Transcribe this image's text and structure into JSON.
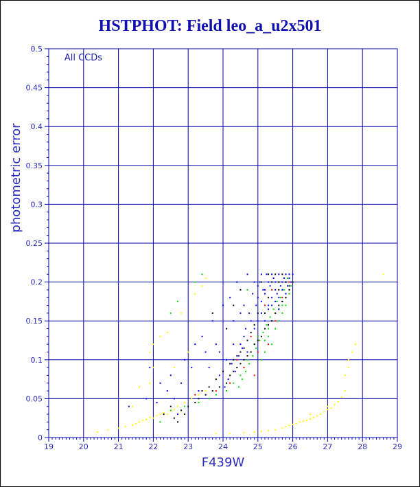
{
  "chart_data": {
    "type": "scatter",
    "title": "HSTPHOT: Field leo_a_u2x501",
    "xlabel": "F439W",
    "ylabel": "photometric error",
    "annotation": "All CCDs",
    "xlim": [
      19,
      29
    ],
    "ylim": [
      0,
      0.5
    ],
    "x_ticks": [
      "19",
      "20",
      "21",
      "22",
      "23",
      "24",
      "25",
      "26",
      "27",
      "28",
      "29"
    ],
    "y_ticks": [
      "0",
      "0.05",
      "0.1",
      "0.15",
      "0.2",
      "0.25",
      "0.3",
      "0.35",
      "0.4",
      "0.45",
      "0.5"
    ],
    "grid": true,
    "colors": {
      "title": "#1010b0",
      "axis": "#0000aa",
      "grid": "#0000aa",
      "text": "#2b2bbf"
    },
    "series": [
      {
        "color": "#ffff00",
        "points": [
          [
            20.4,
            0.007
          ],
          [
            20.7,
            0.01
          ],
          [
            21.0,
            0.012
          ],
          [
            21.2,
            0.014
          ],
          [
            21.4,
            0.016
          ],
          [
            21.5,
            0.018
          ],
          [
            21.6,
            0.02
          ],
          [
            21.7,
            0.022
          ],
          [
            21.8,
            0.023
          ],
          [
            21.9,
            0.026
          ],
          [
            22.0,
            0.025
          ],
          [
            22.1,
            0.028
          ],
          [
            22.2,
            0.03
          ],
          [
            22.3,
            0.032
          ],
          [
            22.4,
            0.03
          ],
          [
            22.5,
            0.034
          ],
          [
            22.6,
            0.036
          ],
          [
            22.7,
            0.04
          ],
          [
            22.9,
            0.045
          ],
          [
            23.1,
            0.05
          ],
          [
            23.3,
            0.055
          ],
          [
            23.5,
            0.06
          ],
          [
            21.4,
            0.04
          ],
          [
            21.6,
            0.065
          ],
          [
            21.9,
            0.07
          ],
          [
            22.0,
            0.12
          ],
          [
            22.2,
            0.13
          ],
          [
            22.4,
            0.135
          ],
          [
            22.6,
            0.09
          ],
          [
            22.8,
            0.16
          ],
          [
            23.0,
            0.11
          ],
          [
            23.2,
            0.185
          ],
          [
            23.4,
            0.195
          ],
          [
            23.5,
            0.205
          ],
          [
            22.0,
            0.09
          ],
          [
            21.9,
            0.11
          ],
          [
            23.8,
            0.005
          ],
          [
            24.2,
            0.005
          ],
          [
            24.6,
            0.006
          ],
          [
            24.9,
            0.007
          ],
          [
            25.1,
            0.008
          ],
          [
            25.3,
            0.009
          ],
          [
            25.5,
            0.01
          ],
          [
            25.7,
            0.012
          ],
          [
            25.8,
            0.014
          ],
          [
            25.9,
            0.016
          ],
          [
            26.0,
            0.017
          ],
          [
            26.1,
            0.018
          ],
          [
            26.2,
            0.02
          ],
          [
            26.3,
            0.021
          ],
          [
            26.4,
            0.022
          ],
          [
            26.5,
            0.024
          ],
          [
            26.6,
            0.026
          ],
          [
            26.7,
            0.028
          ],
          [
            26.8,
            0.03
          ],
          [
            26.9,
            0.033
          ],
          [
            27.0,
            0.036
          ],
          [
            27.1,
            0.038
          ],
          [
            27.2,
            0.042
          ],
          [
            27.3,
            0.046
          ],
          [
            27.4,
            0.052
          ],
          [
            27.5,
            0.06
          ],
          [
            27.5,
            0.08
          ],
          [
            27.6,
            0.09
          ],
          [
            27.6,
            0.1
          ],
          [
            27.7,
            0.11
          ],
          [
            27.8,
            0.12
          ],
          [
            26.5,
            0.03
          ],
          [
            27.0,
            0.04
          ],
          [
            28.6,
            0.21
          ]
        ]
      },
      {
        "color": "#00dd00",
        "points": [
          [
            22.2,
            0.02
          ],
          [
            22.5,
            0.035
          ],
          [
            22.9,
            0.04
          ],
          [
            23.3,
            0.045
          ],
          [
            23.6,
            0.05
          ],
          [
            23.8,
            0.055
          ],
          [
            24.1,
            0.06
          ],
          [
            24.3,
            0.07
          ],
          [
            24.5,
            0.08
          ],
          [
            24.6,
            0.09
          ],
          [
            24.7,
            0.1
          ],
          [
            24.8,
            0.11
          ],
          [
            24.9,
            0.12
          ],
          [
            25.0,
            0.13
          ],
          [
            25.1,
            0.1
          ],
          [
            25.2,
            0.11
          ],
          [
            25.2,
            0.125
          ],
          [
            25.3,
            0.13
          ],
          [
            25.3,
            0.14
          ],
          [
            25.4,
            0.12
          ],
          [
            25.4,
            0.15
          ],
          [
            25.5,
            0.14
          ],
          [
            25.5,
            0.16
          ],
          [
            25.6,
            0.15
          ],
          [
            25.6,
            0.165
          ],
          [
            25.7,
            0.17
          ],
          [
            25.7,
            0.16
          ],
          [
            25.8,
            0.18
          ],
          [
            25.8,
            0.17
          ],
          [
            25.9,
            0.19
          ],
          [
            25.9,
            0.185
          ],
          [
            26.0,
            0.2
          ],
          [
            25.95,
            0.195
          ],
          [
            25.85,
            0.205
          ],
          [
            25.75,
            0.19
          ],
          [
            25.65,
            0.18
          ],
          [
            25.55,
            0.175
          ],
          [
            25.45,
            0.165
          ],
          [
            25.35,
            0.155
          ],
          [
            25.25,
            0.145
          ],
          [
            25.15,
            0.135
          ],
          [
            25.05,
            0.125
          ],
          [
            24.95,
            0.115
          ],
          [
            24.85,
            0.105
          ],
          [
            24.75,
            0.095
          ],
          [
            24.65,
            0.085
          ],
          [
            24.55,
            0.075
          ],
          [
            24.45,
            0.065
          ],
          [
            22.5,
            0.16
          ],
          [
            22.7,
            0.175
          ],
          [
            23.2,
            0.2
          ],
          [
            23.4,
            0.21
          ],
          [
            24.4,
            0.2
          ],
          [
            24.7,
            0.19
          ]
        ]
      },
      {
        "color": "#ff0000",
        "points": [
          [
            23.2,
            0.055
          ],
          [
            23.8,
            0.06
          ],
          [
            24.2,
            0.07
          ],
          [
            24.6,
            0.09
          ],
          [
            24.9,
            0.08
          ],
          [
            25.0,
            0.11
          ],
          [
            25.3,
            0.12
          ],
          [
            25.5,
            0.15
          ],
          [
            25.7,
            0.18
          ],
          [
            25.9,
            0.2
          ],
          [
            24.4,
            0.1
          ],
          [
            25.2,
            0.17
          ],
          [
            25.6,
            0.2
          ],
          [
            25.8,
            0.21
          ],
          [
            24.8,
            0.13
          ],
          [
            25.4,
            0.19
          ]
        ]
      },
      {
        "color": "#0000ff",
        "points": [
          [
            21.3,
            0.04
          ],
          [
            21.8,
            0.05
          ],
          [
            22.1,
            0.045
          ],
          [
            22.4,
            0.06
          ],
          [
            22.6,
            0.05
          ],
          [
            22.8,
            0.07
          ],
          [
            22.9,
            0.1
          ],
          [
            23.1,
            0.09
          ],
          [
            23.2,
            0.12
          ],
          [
            23.4,
            0.13
          ],
          [
            23.5,
            0.11
          ],
          [
            23.6,
            0.09
          ],
          [
            23.7,
            0.15
          ],
          [
            23.8,
            0.12
          ],
          [
            23.9,
            0.08
          ],
          [
            24.0,
            0.17
          ],
          [
            24.1,
            0.14
          ],
          [
            24.2,
            0.18
          ],
          [
            24.3,
            0.15
          ],
          [
            24.4,
            0.2
          ],
          [
            24.5,
            0.12
          ],
          [
            24.6,
            0.17
          ],
          [
            24.7,
            0.21
          ],
          [
            24.8,
            0.15
          ],
          [
            24.9,
            0.2
          ],
          [
            25.0,
            0.18
          ],
          [
            25.1,
            0.21
          ],
          [
            25.2,
            0.19
          ],
          [
            25.3,
            0.2
          ],
          [
            25.4,
            0.21
          ],
          [
            25.5,
            0.2
          ],
          [
            25.6,
            0.21
          ],
          [
            25.7,
            0.2
          ],
          [
            25.8,
            0.21
          ],
          [
            25.9,
            0.205
          ],
          [
            26.0,
            0.21
          ],
          [
            25.1,
            0.16
          ],
          [
            25.2,
            0.15
          ],
          [
            25.3,
            0.17
          ],
          [
            25.4,
            0.18
          ],
          [
            25.5,
            0.19
          ],
          [
            25.6,
            0.18
          ],
          [
            25.7,
            0.19
          ],
          [
            25.8,
            0.2
          ],
          [
            24.9,
            0.14
          ],
          [
            25.0,
            0.15
          ],
          [
            24.7,
            0.11
          ],
          [
            24.6,
            0.13
          ],
          [
            24.5,
            0.16
          ],
          [
            24.3,
            0.12
          ],
          [
            24.1,
            0.1
          ],
          [
            23.9,
            0.11
          ],
          [
            23.3,
            0.06
          ],
          [
            22.7,
            0.03
          ],
          [
            22.5,
            0.08
          ],
          [
            22.2,
            0.07
          ],
          [
            21.9,
            0.09
          ],
          [
            25.05,
            0.2
          ],
          [
            25.15,
            0.19
          ],
          [
            25.25,
            0.21
          ],
          [
            25.35,
            0.195
          ],
          [
            25.45,
            0.205
          ],
          [
            25.55,
            0.185
          ],
          [
            25.65,
            0.195
          ],
          [
            25.75,
            0.205
          ],
          [
            25.85,
            0.195
          ],
          [
            25.95,
            0.2
          ],
          [
            25.1,
            0.175
          ],
          [
            25.2,
            0.185
          ],
          [
            25.3,
            0.165
          ],
          [
            25.4,
            0.17
          ],
          [
            25.5,
            0.175
          ],
          [
            25.6,
            0.165
          ],
          [
            25.7,
            0.175
          ],
          [
            25.8,
            0.185
          ],
          [
            25.9,
            0.21
          ],
          [
            25.0,
            0.195
          ],
          [
            24.95,
            0.17
          ],
          [
            24.85,
            0.185
          ],
          [
            24.75,
            0.16
          ],
          [
            24.65,
            0.14
          ],
          [
            24.55,
            0.115
          ],
          [
            24.45,
            0.105
          ],
          [
            24.35,
            0.085
          ],
          [
            24.25,
            0.095
          ],
          [
            24.15,
            0.075
          ],
          [
            24.05,
            0.065
          ]
        ]
      },
      {
        "color": "#000000",
        "points": [
          [
            22.3,
            0.03
          ],
          [
            22.6,
            0.025
          ],
          [
            22.8,
            0.035
          ],
          [
            23.0,
            0.04
          ],
          [
            23.3,
            0.05
          ],
          [
            23.5,
            0.055
          ],
          [
            23.7,
            0.06
          ],
          [
            23.9,
            0.065
          ],
          [
            24.1,
            0.07
          ],
          [
            24.2,
            0.08
          ],
          [
            24.3,
            0.085
          ],
          [
            24.4,
            0.09
          ],
          [
            24.5,
            0.095
          ],
          [
            24.6,
            0.1
          ],
          [
            24.7,
            0.105
          ],
          [
            24.8,
            0.11
          ],
          [
            24.9,
            0.12
          ],
          [
            25.0,
            0.125
          ],
          [
            25.1,
            0.13
          ],
          [
            25.2,
            0.14
          ],
          [
            25.3,
            0.145
          ],
          [
            25.4,
            0.15
          ],
          [
            25.5,
            0.16
          ],
          [
            25.6,
            0.17
          ],
          [
            25.7,
            0.175
          ],
          [
            25.8,
            0.18
          ],
          [
            25.9,
            0.19
          ],
          [
            26.0,
            0.2
          ],
          [
            25.2,
            0.16
          ],
          [
            25.3,
            0.18
          ],
          [
            25.4,
            0.2
          ],
          [
            25.5,
            0.21
          ],
          [
            25.6,
            0.2
          ],
          [
            25.7,
            0.21
          ],
          [
            25.1,
            0.2
          ],
          [
            25.0,
            0.16
          ],
          [
            24.9,
            0.145
          ],
          [
            24.8,
            0.135
          ],
          [
            24.7,
            0.125
          ],
          [
            24.6,
            0.115
          ],
          [
            24.5,
            0.11
          ],
          [
            24.4,
            0.105
          ],
          [
            24.3,
            0.1
          ],
          [
            24.2,
            0.095
          ],
          [
            24.0,
            0.085
          ],
          [
            23.8,
            0.075
          ],
          [
            23.6,
            0.065
          ],
          [
            23.4,
            0.06
          ],
          [
            23.2,
            0.045
          ],
          [
            22.9,
            0.03
          ],
          [
            22.7,
            0.02
          ],
          [
            22.5,
            0.04
          ],
          [
            24.1,
            0.14
          ],
          [
            24.3,
            0.17
          ],
          [
            23.7,
            0.16
          ],
          [
            24.5,
            0.19
          ],
          [
            25.3,
            0.21
          ],
          [
            25.8,
            0.2
          ],
          [
            25.9,
            0.195
          ],
          [
            25.6,
            0.19
          ]
        ]
      }
    ]
  }
}
